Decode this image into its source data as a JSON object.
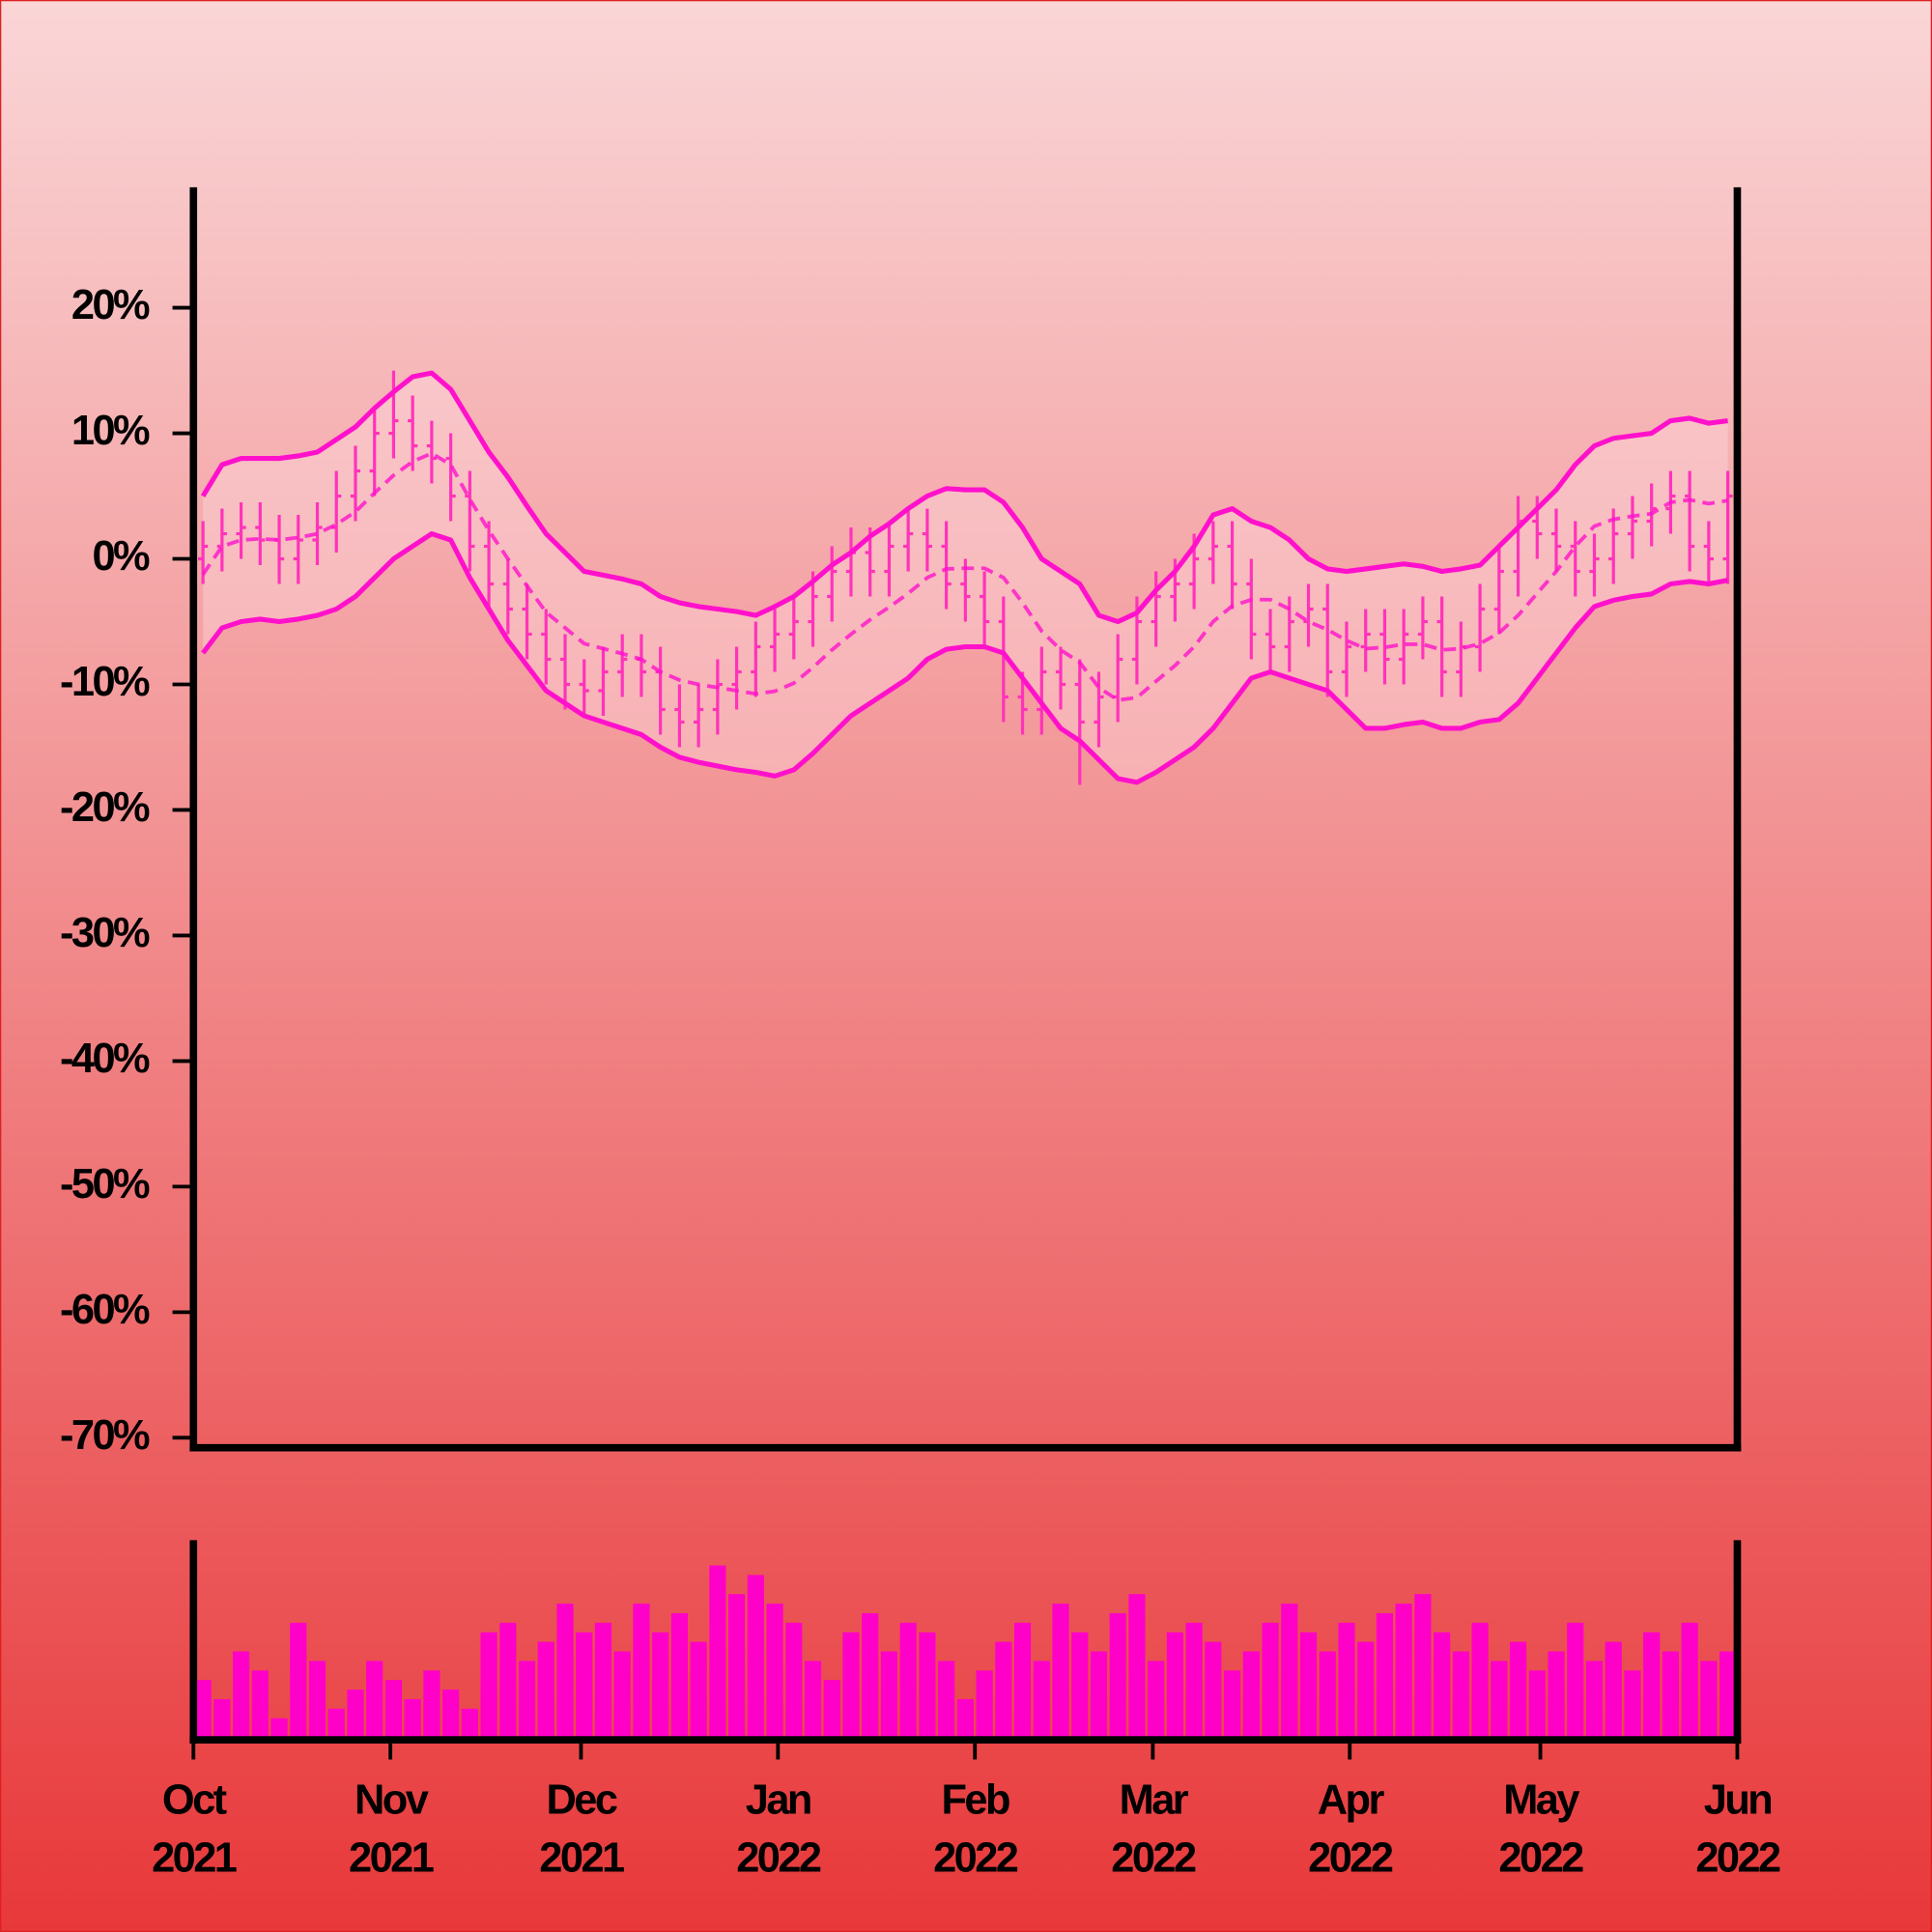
{
  "chart_data": {
    "type": "ohlc",
    "xlim": [
      "2021-10",
      "2022-06"
    ],
    "xticks": [
      {
        "value": "2021-10",
        "label": [
          "Oct",
          "2021"
        ]
      },
      {
        "value": "2021-11",
        "label": [
          "Nov",
          "2021"
        ]
      },
      {
        "value": "2021-12",
        "label": [
          "Dec",
          "2021"
        ]
      },
      {
        "value": "2022-01",
        "label": [
          "Jan",
          "2022"
        ]
      },
      {
        "value": "2022-02",
        "label": [
          "Feb",
          "2022"
        ]
      },
      {
        "value": "2022-03",
        "label": [
          "Mar",
          "2022"
        ]
      },
      {
        "value": "2022-04",
        "label": [
          "Apr",
          "2022"
        ]
      },
      {
        "value": "2022-05",
        "label": [
          "May",
          "2022"
        ]
      },
      {
        "value": "2022-06",
        "label": [
          "Jun",
          "2022"
        ]
      }
    ],
    "ylim": [
      -70.8,
      29.3
    ],
    "yticks": [
      {
        "value": 20,
        "label": "20%"
      },
      {
        "value": 10,
        "label": "10%"
      },
      {
        "value": 0,
        "label": "0%"
      },
      {
        "value": -10,
        "label": "-10%"
      },
      {
        "value": -20,
        "label": "-20%"
      },
      {
        "value": -30,
        "label": "-30%"
      },
      {
        "value": -40,
        "label": "-40%"
      },
      {
        "value": -50,
        "label": "-50%"
      },
      {
        "value": -60,
        "label": "-60%"
      },
      {
        "value": -70,
        "label": "-70%"
      }
    ],
    "ohlc": {
      "color": "#ff33bb",
      "open": [
        0,
        1,
        2,
        2.5,
        1.5,
        0,
        1.5,
        2.5,
        5,
        7,
        10,
        11,
        9,
        8,
        5,
        1,
        -2,
        -4,
        -6,
        -8,
        -10,
        -10.5,
        -9,
        -8,
        -9,
        -12,
        -13,
        -12,
        -10,
        -9,
        -7,
        -6,
        -5,
        -3,
        -1,
        0.5,
        -1,
        1,
        2,
        1,
        -2,
        -3,
        -5,
        -11,
        -12,
        -9,
        -10,
        -13,
        -11,
        -8,
        -5,
        -3,
        -2,
        0,
        1,
        -2,
        -6,
        -7,
        -5,
        -4,
        -9,
        -7,
        -6,
        -8,
        -6,
        -5,
        -9,
        -7,
        -4,
        -1,
        3,
        2,
        1,
        -1,
        0,
        2,
        3,
        4,
        5,
        1,
        0
      ],
      "high": [
        3,
        4,
        4.5,
        4.5,
        3.5,
        3.5,
        4.5,
        7,
        9,
        12,
        15,
        13,
        11,
        10,
        7,
        3,
        0,
        -2,
        -4,
        -6,
        -8,
        -7,
        -6,
        -6,
        -7,
        -10,
        -10,
        -8,
        -7,
        -5,
        -4,
        -3,
        -1,
        1,
        2.5,
        2.5,
        3,
        4,
        4,
        3,
        0,
        -1,
        -3,
        -9,
        -7,
        -7,
        -8,
        -9,
        -6,
        -3,
        -1,
        0,
        2,
        3,
        3,
        0,
        -4,
        -3,
        -2,
        -2,
        -5,
        -4,
        -4,
        -4,
        -3,
        -3,
        -5,
        -2,
        1,
        5,
        5,
        4,
        3,
        2,
        4,
        5,
        6,
        7,
        7,
        3,
        7
      ],
      "low": [
        -2,
        -1,
        0,
        -0.5,
        -2,
        -2,
        -0.5,
        0.5,
        3,
        5,
        8,
        7,
        6,
        3,
        -1,
        -4,
        -6,
        -8,
        -10,
        -12,
        -12.5,
        -12.5,
        -11,
        -11,
        -14,
        -15,
        -15,
        -14,
        -12,
        -11,
        -9,
        -8,
        -7,
        -5,
        -3,
        -3,
        -3,
        -1,
        -1,
        -4,
        -5,
        -7,
        -13,
        -14,
        -14,
        -12,
        -18,
        -15,
        -13,
        -10,
        -7,
        -5,
        -4,
        -2,
        -4,
        -8,
        -9,
        -9,
        -7,
        -11,
        -11,
        -9,
        -10,
        -10,
        -8,
        -11,
        -11,
        -9,
        -6,
        -3,
        0,
        -1,
        -3,
        -3,
        -2,
        0,
        1,
        2,
        -1,
        -2,
        -2
      ],
      "close": [
        1,
        2,
        2.5,
        1.5,
        0,
        1.5,
        2.5,
        5,
        7,
        10,
        11,
        9,
        8,
        5,
        1,
        -2,
        -4,
        -6,
        -8,
        -10,
        -10.5,
        -9,
        -8,
        -9,
        -12,
        -13,
        -12,
        -10,
        -9,
        -7,
        -6,
        -5,
        -3,
        -1,
        0.5,
        -1,
        1,
        2,
        1,
        -2,
        -3,
        -5,
        -11,
        -12,
        -9,
        -10,
        -13,
        -11,
        -8,
        -5,
        -3,
        -2,
        0,
        1,
        -2,
        -6,
        -7,
        -5,
        -4,
        -9,
        -7,
        -6,
        -8,
        -6,
        -5,
        -9,
        -7,
        -4,
        -1,
        3,
        2,
        1,
        -1,
        0,
        2,
        3,
        4,
        5,
        1,
        0,
        5
      ]
    },
    "bands": {
      "color": "#ff11cc",
      "upper": [
        5,
        7.5,
        8,
        8,
        8,
        8.2,
        8.5,
        9.5,
        10.5,
        12,
        13.3,
        14.5,
        14.8,
        13.5,
        11,
        8.5,
        6.5,
        4.2,
        2,
        0.5,
        -1,
        -1.3,
        -1.6,
        -2,
        -3,
        -3.5,
        -3.8,
        -4,
        -4.2,
        -4.5,
        -3.8,
        -3,
        -1.8,
        -0.5,
        0.5,
        1.8,
        2.8,
        4,
        5,
        5.6,
        5.5,
        5.5,
        4.5,
        2.5,
        0,
        -1,
        -2,
        -4.5,
        -5,
        -4.3,
        -2.5,
        -1,
        1,
        3.5,
        4,
        3,
        2.5,
        1.5,
        0,
        -0.8,
        -1,
        -0.8,
        -0.6,
        -0.4,
        -0.6,
        -1,
        -0.8,
        -0.5,
        1,
        2.5,
        4,
        5.5,
        7.5,
        9,
        9.6,
        9.8,
        10,
        11,
        11.2,
        10.8,
        11
      ],
      "middle": [
        -1.25,
        1,
        1.5,
        1.6,
        1.5,
        1.7,
        2,
        2.75,
        3.75,
        5.25,
        6.65,
        7.75,
        8.4,
        7.5,
        4.75,
        2.25,
        0,
        -2.15,
        -4.25,
        -5.5,
        -6.75,
        -7.15,
        -7.55,
        -8,
        -9,
        -9.65,
        -10,
        -10.25,
        -10.5,
        -10.75,
        -10.55,
        -9.9,
        -8.65,
        -7.25,
        -6,
        -4.85,
        -3.85,
        -2.75,
        -1.5,
        -0.8,
        -0.75,
        -0.75,
        -1.5,
        -3.5,
        -5.75,
        -7.25,
        -8.25,
        -10.25,
        -11.25,
        -11.05,
        -9.75,
        -8.5,
        -7,
        -5,
        -3.75,
        -3.25,
        -3.25,
        -4,
        -5,
        -5.65,
        -6.5,
        -7.15,
        -7.05,
        -6.8,
        -6.8,
        -7.25,
        -7.15,
        -6.75,
        -5.9,
        -4.5,
        -2.75,
        -1,
        1,
        2.6,
        3.15,
        3.4,
        3.6,
        4.5,
        4.7,
        4.4,
        4.65
      ],
      "lower": [
        -7.5,
        -5.5,
        -5,
        -4.8,
        -5,
        -4.8,
        -4.5,
        -4,
        -3,
        -1.5,
        0,
        1,
        2,
        1.5,
        -1.5,
        -4,
        -6.5,
        -8.5,
        -10.5,
        -11.5,
        -12.5,
        -13,
        -13.5,
        -14,
        -15,
        -15.8,
        -16.2,
        -16.5,
        -16.8,
        -17,
        -17.3,
        -16.8,
        -15.5,
        -14,
        -12.5,
        -11.5,
        -10.5,
        -9.5,
        -8,
        -7.2,
        -7,
        -7,
        -7.5,
        -9.5,
        -11.5,
        -13.5,
        -14.5,
        -16,
        -17.5,
        -17.8,
        -17,
        -16,
        -15,
        -13.5,
        -11.5,
        -9.5,
        -9,
        -9.5,
        -10,
        -10.5,
        -12,
        -13.5,
        -13.5,
        -13.2,
        -13,
        -13.5,
        -13.5,
        -13,
        -12.8,
        -11.5,
        -9.5,
        -7.5,
        -5.5,
        -3.8,
        -3.3,
        -3,
        -2.8,
        -2,
        -1.8,
        -2,
        -1.7
      ]
    },
    "volume": {
      "color": "#ff00c8",
      "ylim": [
        0,
        100
      ],
      "values": [
        30,
        20,
        45,
        35,
        10,
        60,
        40,
        15,
        25,
        40,
        30,
        20,
        35,
        25,
        15,
        55,
        60,
        40,
        50,
        70,
        55,
        60,
        45,
        70,
        55,
        65,
        50,
        90,
        75,
        85,
        70,
        60,
        40,
        30,
        55,
        65,
        45,
        60,
        55,
        40,
        20,
        35,
        50,
        60,
        40,
        70,
        55,
        45,
        65,
        75,
        40,
        55,
        60,
        50,
        35,
        45,
        60,
        70,
        55,
        45,
        60,
        50,
        65,
        70,
        75,
        55,
        45,
        60,
        40,
        50,
        35,
        45,
        60,
        40,
        50,
        35,
        55,
        45,
        60,
        40,
        45
      ]
    }
  }
}
